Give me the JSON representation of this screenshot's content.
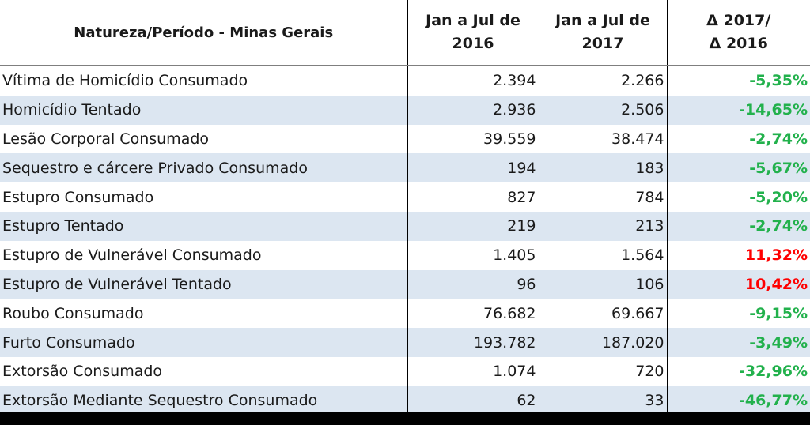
{
  "table": {
    "headers": {
      "natureza": "Natureza/Período - Minas Gerais",
      "col2016_line1": "Jan a Jul de",
      "col2016_line2": "2016",
      "col2017_line1": "Jan a Jul de",
      "col2017_line2": "2017",
      "delta_line1": "Δ 2017/",
      "delta_line2": "Δ 2016"
    },
    "rows": [
      {
        "label": "Vítima de Homicídio Consumado",
        "v2016": "2.394",
        "v2017": "2.266",
        "delta": "-5,35%",
        "trend": "down"
      },
      {
        "label": "Homicídio Tentado",
        "v2016": "2.936",
        "v2017": "2.506",
        "delta": "-14,65%",
        "trend": "down"
      },
      {
        "label": "Lesão Corporal Consumado",
        "v2016": "39.559",
        "v2017": "38.474",
        "delta": "-2,74%",
        "trend": "down"
      },
      {
        "label": "Sequestro e cárcere Privado Consumado",
        "v2016": "194",
        "v2017": "183",
        "delta": "-5,67%",
        "trend": "down"
      },
      {
        "label": "Estupro Consumado",
        "v2016": "827",
        "v2017": "784",
        "delta": "-5,20%",
        "trend": "down"
      },
      {
        "label": "Estupro Tentado",
        "v2016": "219",
        "v2017": "213",
        "delta": "-2,74%",
        "trend": "down"
      },
      {
        "label": "Estupro de Vulnerável Consumado",
        "v2016": "1.405",
        "v2017": "1.564",
        "delta": "11,32%",
        "trend": "up"
      },
      {
        "label": "Estupro de Vulnerável Tentado",
        "v2016": "96",
        "v2017": "106",
        "delta": "10,42%",
        "trend": "up"
      },
      {
        "label": "Roubo Consumado",
        "v2016": "76.682",
        "v2017": "69.667",
        "delta": "-9,15%",
        "trend": "down"
      },
      {
        "label": "Furto Consumado",
        "v2016": "193.782",
        "v2017": "187.020",
        "delta": "-3,49%",
        "trend": "down"
      },
      {
        "label": "Extorsão Consumado",
        "v2016": "1.074",
        "v2017": "720",
        "delta": "-32,96%",
        "trend": "down"
      },
      {
        "label": "Extorsão Mediante Sequestro Consumado",
        "v2016": "62",
        "v2017": "33",
        "delta": "-46,77%",
        "trend": "down"
      }
    ]
  },
  "colors": {
    "decrease": "#22b14c",
    "increase": "#ff0000",
    "band": "#dce6f1"
  }
}
